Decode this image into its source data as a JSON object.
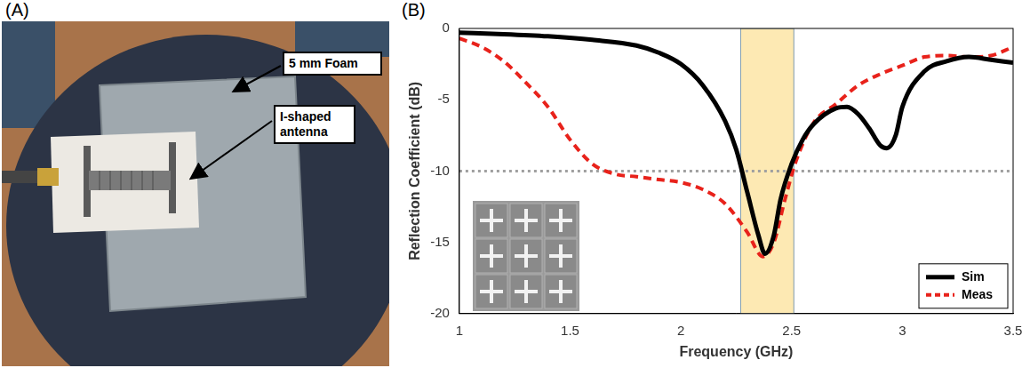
{
  "photo_panel": {
    "label": "(A)",
    "annotations": [
      "5 mm Foam",
      "I-shaped antenna"
    ]
  },
  "chart_data": {
    "type": "line",
    "panel_label": "(B)",
    "x_label": "Frequency (GHz)",
    "y_label": "Reflection Coefficient (dB)",
    "xlim": [
      1,
      3.5
    ],
    "xticks": [
      1,
      1.5,
      2,
      2.5,
      3,
      3.5
    ],
    "ylim": [
      -20,
      0
    ],
    "yticks": [
      -20,
      -15,
      -10,
      -5,
      0
    ],
    "grid": false,
    "legend": "lower right",
    "series": [
      {
        "name": "Sim",
        "color": "#000000",
        "line_style": "solid",
        "x": [
          1,
          1.2,
          1.4,
          1.6,
          1.8,
          1.9,
          2.0,
          2.1,
          2.2,
          2.25,
          2.3,
          2.35,
          2.38,
          2.42,
          2.45,
          2.5,
          2.55,
          2.6,
          2.7,
          2.75,
          2.8,
          2.85,
          2.9,
          2.93,
          2.97,
          3.0,
          3.1,
          3.2,
          3.3,
          3.4,
          3.5
        ],
        "values": [
          -0.3,
          -0.4,
          -0.55,
          -0.8,
          -1.2,
          -1.7,
          -2.5,
          -4.0,
          -6.5,
          -8.5,
          -11.5,
          -14.5,
          -15.8,
          -14.5,
          -12.0,
          -9.5,
          -7.8,
          -6.7,
          -5.6,
          -5.5,
          -6.0,
          -7.0,
          -8.2,
          -8.4,
          -7.5,
          -5.5,
          -3.0,
          -2.3,
          -2.0,
          -2.2,
          -2.4
        ]
      },
      {
        "name": "Meas",
        "color": "#e8221b",
        "line_style": "dashed",
        "x": [
          1,
          1.1,
          1.2,
          1.3,
          1.4,
          1.5,
          1.6,
          1.7,
          1.8,
          1.9,
          2.0,
          2.1,
          2.2,
          2.3,
          2.37,
          2.42,
          2.47,
          2.52,
          2.6,
          2.7,
          2.8,
          2.9,
          3.0,
          3.1,
          3.2,
          3.3,
          3.4,
          3.5
        ],
        "values": [
          -0.7,
          -1.3,
          -2.3,
          -3.8,
          -5.5,
          -7.8,
          -9.5,
          -10.2,
          -10.4,
          -10.6,
          -10.8,
          -11.3,
          -12.3,
          -14.3,
          -16.0,
          -15.0,
          -12.0,
          -9.3,
          -6.6,
          -5.3,
          -4.0,
          -3.2,
          -2.6,
          -2.0,
          -1.9,
          -2.0,
          -1.9,
          -1.3
        ]
      }
    ],
    "highlight_band": {
      "x": [
        2.27,
        2.51
      ],
      "color": "#fde9b3"
    },
    "reference_line": {
      "y": -10,
      "color": "#a0a0a0",
      "line_style": "dotted"
    }
  }
}
